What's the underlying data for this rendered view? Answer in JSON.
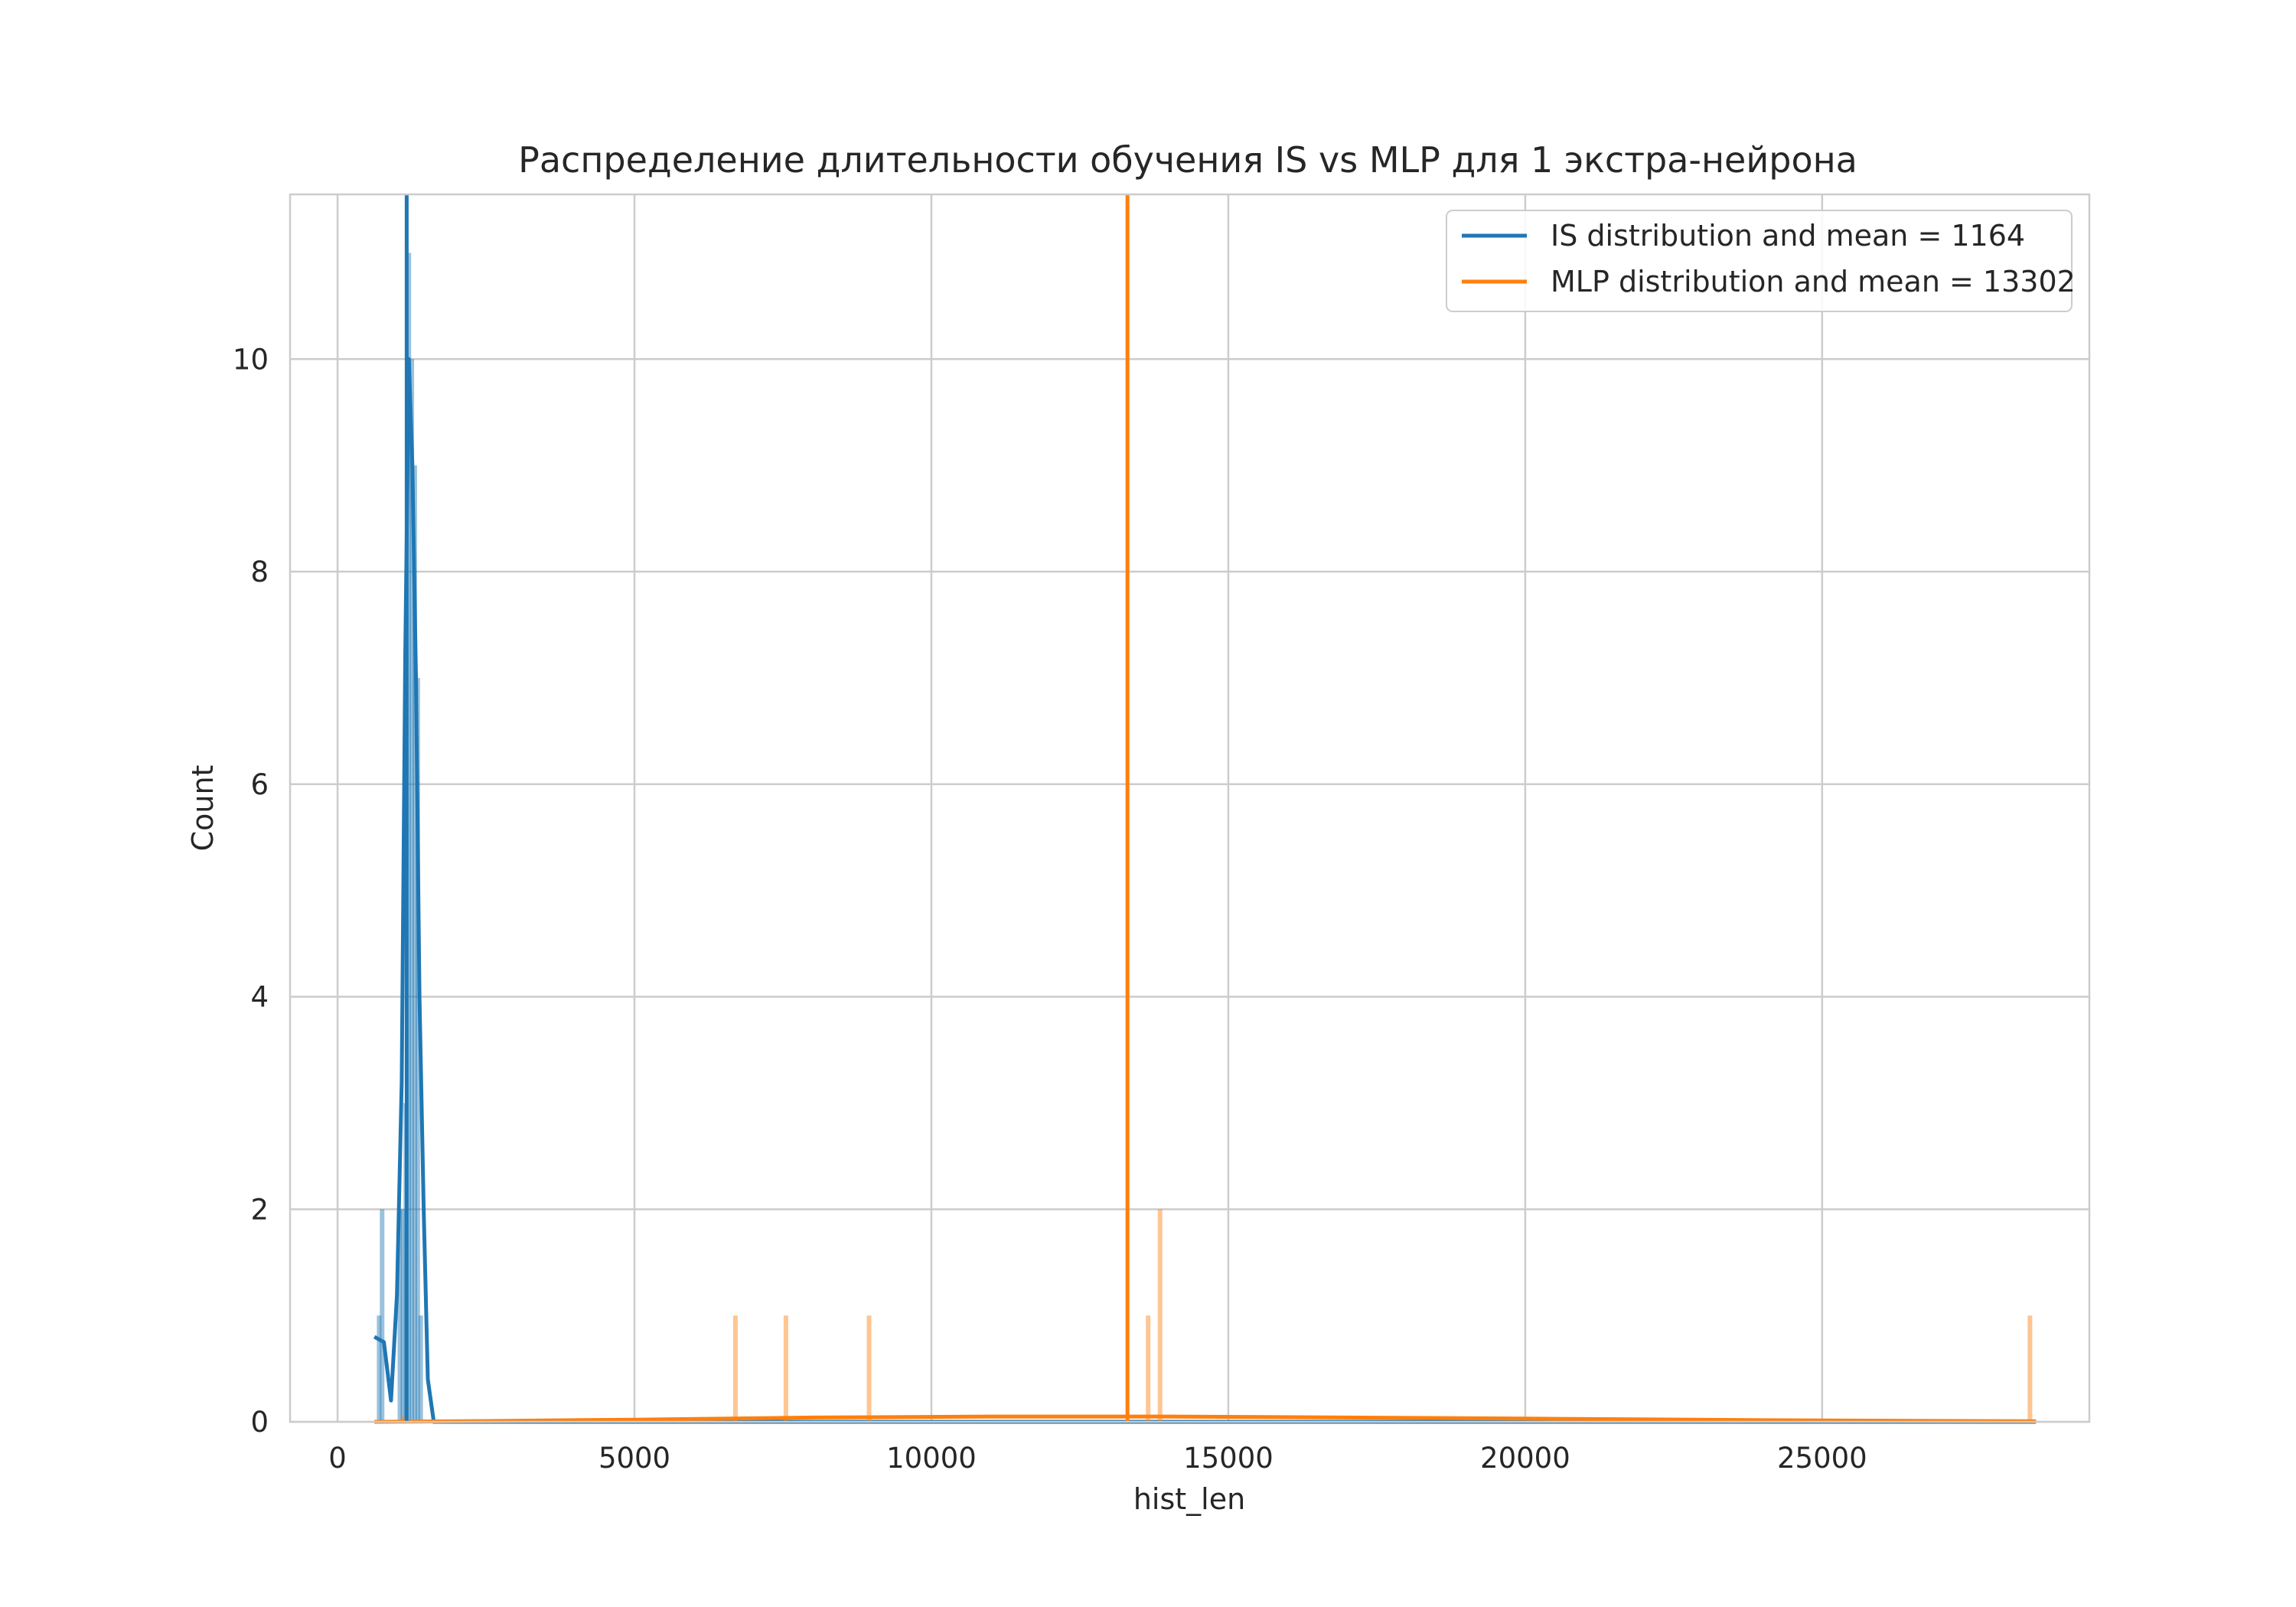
{
  "chart_data": {
    "type": "histogram",
    "title": "Распределение длительности обучения IS vs MLP для 1 экстра-нейрона",
    "xlabel": "hist_len",
    "ylabel": "Count",
    "xlim": [
      -800,
      29500
    ],
    "ylim": [
      0,
      11.55
    ],
    "x_ticks": [
      0,
      5000,
      10000,
      15000,
      20000,
      25000
    ],
    "y_ticks": [
      0,
      2,
      4,
      6,
      8,
      10
    ],
    "grid": true,
    "legend_position": "top-right",
    "series": [
      {
        "name": "IS distribution and mean = 1164",
        "color": "#1f77b4",
        "mean": 1164,
        "bars": [
          {
            "x": 700,
            "count": 1
          },
          {
            "x": 750,
            "count": 2
          },
          {
            "x": 1050,
            "count": 2
          },
          {
            "x": 1100,
            "count": 2
          },
          {
            "x": 1150,
            "count": 3
          },
          {
            "x": 1200,
            "count": 11
          },
          {
            "x": 1250,
            "count": 10
          },
          {
            "x": 1300,
            "count": 9
          },
          {
            "x": 1350,
            "count": 7
          },
          {
            "x": 1400,
            "count": 1
          }
        ],
        "kde": [
          [
            620,
            0.8
          ],
          [
            780,
            0.75
          ],
          [
            900,
            0.2
          ],
          [
            1000,
            1.2
          ],
          [
            1080,
            3.2
          ],
          [
            1140,
            7.2
          ],
          [
            1200,
            10.0
          ],
          [
            1260,
            9.0
          ],
          [
            1320,
            7.0
          ],
          [
            1380,
            4.0
          ],
          [
            1450,
            2.0
          ],
          [
            1520,
            0.4
          ],
          [
            1620,
            0.0
          ],
          [
            28600,
            0.0
          ]
        ]
      },
      {
        "name": "MLP distribution and mean = 13302",
        "color": "#ff7f0e",
        "mean": 13302,
        "bars": [
          {
            "x": 1100,
            "count": 0.05
          },
          {
            "x": 6700,
            "count": 1
          },
          {
            "x": 7550,
            "count": 1
          },
          {
            "x": 8950,
            "count": 1
          },
          {
            "x": 13650,
            "count": 1
          },
          {
            "x": 13850,
            "count": 2
          },
          {
            "x": 28500,
            "count": 1
          }
        ],
        "kde": [
          [
            620,
            0.0
          ],
          [
            2000,
            0.005
          ],
          [
            5000,
            0.02
          ],
          [
            8000,
            0.04
          ],
          [
            11000,
            0.05
          ],
          [
            14000,
            0.05
          ],
          [
            17000,
            0.04
          ],
          [
            20000,
            0.03
          ],
          [
            24000,
            0.015
          ],
          [
            28600,
            0.005
          ]
        ]
      }
    ]
  }
}
